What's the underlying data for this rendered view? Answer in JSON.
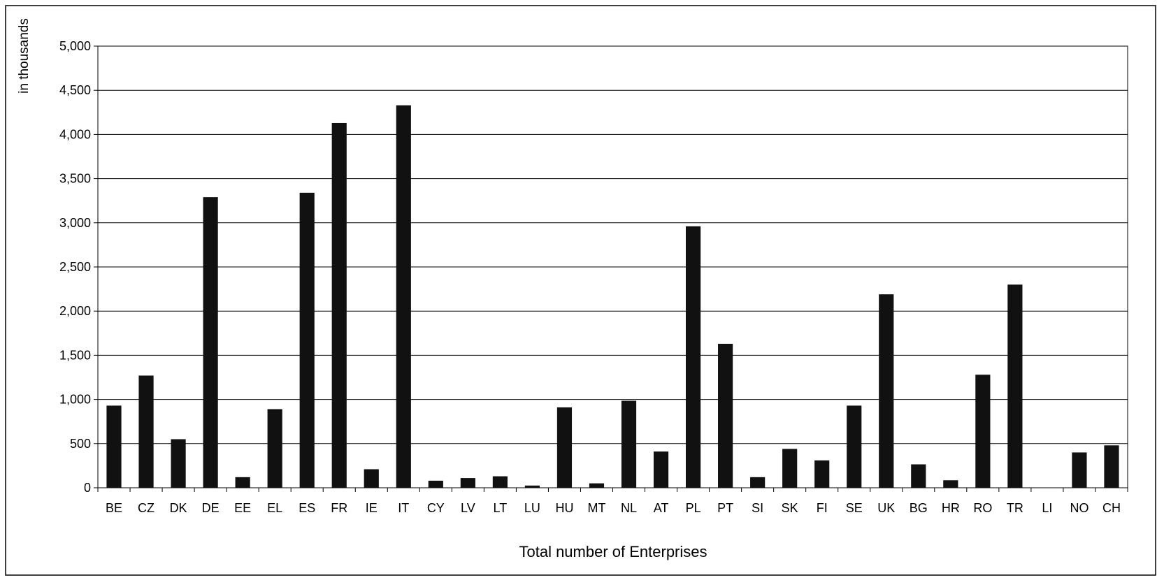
{
  "chart_data": {
    "type": "bar",
    "title": "",
    "xlabel": "Total number of Enterprises",
    "ylabel": "in thousands",
    "ylim": [
      0,
      5000
    ],
    "yticks": [
      0,
      500,
      1000,
      1500,
      2000,
      2500,
      3000,
      3500,
      4000,
      4500,
      5000
    ],
    "ytick_labels": [
      "0",
      "500",
      "1,000",
      "1,500",
      "2,000",
      "2,500",
      "3,000",
      "3,500",
      "4,000",
      "4,500",
      "5,000"
    ],
    "grid": "horizontal",
    "bar_color": "#111111",
    "categories": [
      "BE",
      "CZ",
      "DK",
      "DE",
      "EE",
      "EL",
      "ES",
      "FR",
      "IE",
      "IT",
      "CY",
      "LV",
      "LT",
      "LU",
      "HU",
      "MT",
      "NL",
      "AT",
      "PL",
      "PT",
      "SI",
      "SK",
      "FI",
      "SE",
      "UK",
      "BG",
      "HR",
      "RO",
      "TR",
      "LI",
      "NO",
      "CH"
    ],
    "values": [
      930,
      1270,
      550,
      3290,
      120,
      890,
      3340,
      4130,
      210,
      4330,
      80,
      110,
      130,
      25,
      910,
      50,
      985,
      410,
      2960,
      1630,
      120,
      440,
      310,
      930,
      2190,
      265,
      85,
      1280,
      2300,
      2,
      400,
      480
    ]
  }
}
